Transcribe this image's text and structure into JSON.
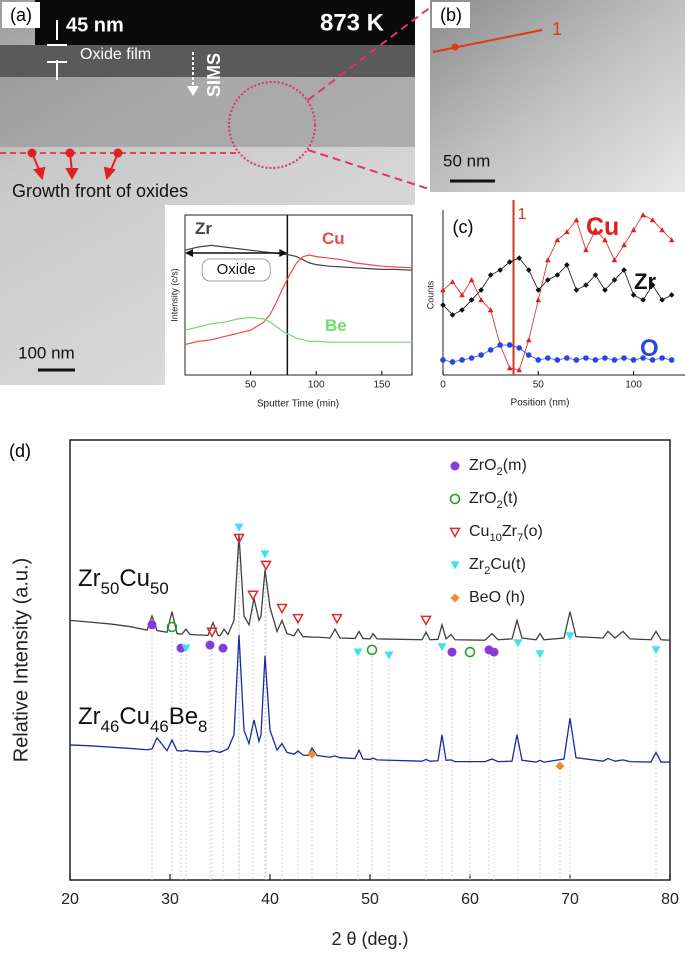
{
  "figure": {
    "panel_labels": [
      "(a)",
      "(b)",
      "(c)",
      "(d)"
    ],
    "micrograph_a": {
      "film_thickness": "45 nm",
      "film_label": "Oxide film",
      "method": "SIMS",
      "temperature": "873 K",
      "front_label": "Growth front of oxides",
      "scale_bar": "100 nm"
    },
    "micrograph_b": {
      "scale_bar": "50 nm",
      "line_label": "1"
    }
  },
  "chart_data": [
    {
      "type": "line",
      "xlabel": "Sputter Time (min)",
      "ylabel": "Intensity (c/s)",
      "x": [
        0,
        10,
        20,
        30,
        40,
        50,
        60,
        65,
        70,
        75,
        80,
        85,
        90,
        95,
        100,
        110,
        120,
        130,
        140,
        150,
        160,
        173
      ],
      "xlim": [
        0,
        173
      ],
      "ylim": [
        0,
        100
      ],
      "xticks": [
        50,
        100,
        150
      ],
      "vline": {
        "x": 78
      },
      "annotation": {
        "text": "Oxide",
        "span": [
          0,
          78
        ]
      },
      "series": [
        {
          "name": "Zr",
          "color": "#444444",
          "values": [
            78,
            80,
            81,
            80,
            79,
            78,
            77,
            76.5,
            76,
            75.5,
            75,
            74,
            72,
            70,
            69,
            68,
            67.5,
            67,
            66.5,
            66,
            66,
            65.5
          ]
        },
        {
          "name": "Cu",
          "color": "#f04848",
          "values": [
            19,
            21,
            22,
            24,
            26,
            28,
            33,
            38,
            46,
            55,
            63,
            70,
            74,
            75,
            74,
            73,
            72,
            70,
            69,
            68,
            67.5,
            67
          ]
        },
        {
          "name": "Be",
          "color": "#6fdc6f",
          "values": [
            28,
            30,
            32,
            33,
            35,
            36,
            35,
            33,
            30,
            27,
            25,
            23,
            22,
            21,
            21,
            20.5,
            20.5,
            20.5,
            20.5,
            20.5,
            20.5,
            20.5
          ]
        }
      ]
    },
    {
      "type": "line",
      "xlabel": "Position (nm)",
      "ylabel": "Counts",
      "x": [
        0,
        5,
        10,
        15,
        20,
        25,
        30,
        35,
        40,
        45,
        50,
        55,
        60,
        65,
        70,
        75,
        80,
        85,
        90,
        95,
        100,
        105,
        110,
        115,
        120
      ],
      "xlim": [
        0,
        127
      ],
      "ylim": [
        0,
        100
      ],
      "xticks": [
        0,
        50,
        100
      ],
      "vline": {
        "x": 37,
        "label": "1"
      },
      "series": [
        {
          "name": "Cu",
          "color": "#e02020",
          "style": "line+markers",
          "marker": "triangle",
          "values": [
            51.5,
            56.4,
            48.5,
            57.6,
            45.5,
            39.4,
            18.2,
            4.2,
            3.0,
            21.2,
            45.5,
            69.7,
            81.8,
            86.7,
            93.9,
            75.8,
            87.9,
            81.8,
            69.7,
            78.8,
            87.9,
            97.0,
            93.9,
            87.9,
            81.8
          ]
        },
        {
          "name": "Zr",
          "color": "#111111",
          "style": "line+markers",
          "marker": "diamond",
          "values": [
            42.4,
            36.4,
            39.4,
            45.5,
            51.5,
            60.6,
            63.6,
            68.5,
            70.9,
            63.6,
            51.5,
            57.6,
            60.6,
            66.7,
            51.5,
            54.5,
            60.6,
            51.5,
            57.6,
            63.6,
            48.5,
            45.5,
            54.5,
            45.5,
            48.5
          ]
        },
        {
          "name": "O",
          "color": "#2a45e6",
          "style": "line+markers",
          "marker": "circle",
          "values": [
            9.1,
            7.9,
            9.1,
            10.3,
            12.1,
            15.2,
            18.2,
            18.2,
            16.4,
            12.1,
            9.1,
            10.3,
            9.1,
            10.3,
            9.1,
            10.3,
            9.1,
            10.3,
            9.1,
            10.3,
            9.1,
            10.3,
            9.1,
            10.3,
            9.1
          ]
        }
      ]
    },
    {
      "type": "line",
      "xlabel": "2 θ (deg.)",
      "ylabel": "Relative Intensity (a.u.)",
      "x": [
        20,
        22,
        24,
        26,
        27.7,
        28.2,
        28.7,
        29.7,
        30.2,
        30.7,
        31.2,
        31.6,
        32.0,
        33.8,
        34.3,
        34.8,
        35.0,
        35.4,
        35.8,
        36.4,
        36.9,
        37.4,
        37.9,
        38.4,
        38.9,
        39.1,
        39.5,
        40.0,
        40.7,
        41.2,
        41.7,
        42.4,
        42.8,
        43.3,
        43.8,
        44.2,
        44.7,
        46.0,
        46.5,
        47.0,
        48.5,
        48.9,
        49.3,
        50.0,
        50.3,
        50.7,
        55.2,
        55.6,
        56.0,
        56.8,
        57.2,
        57.6,
        58.1,
        58.5,
        61.5,
        62.2,
        62.8,
        64.2,
        64.7,
        65.2,
        66.6,
        67.0,
        67.4,
        69.4,
        70.0,
        70.6,
        73.3,
        73.8,
        74.5,
        75.3,
        76.0,
        78.1,
        78.6,
        79.1,
        80
      ],
      "xlim": [
        20,
        80
      ],
      "ylim": [
        0,
        100
      ],
      "xticks": [
        20,
        30,
        40,
        50,
        60,
        70,
        80
      ],
      "series": [
        {
          "name": "Zr50Cu50",
          "color": "#404040",
          "style": "line",
          "values": [
            59,
            58.6,
            58.2,
            57.6,
            56.8,
            60.0,
            56.7,
            56.3,
            61.0,
            56.0,
            55.9,
            57.0,
            55.8,
            55.6,
            58.5,
            55.6,
            55.5,
            57.0,
            55.8,
            59.0,
            78.4,
            60.0,
            58.0,
            64.0,
            59.0,
            60.0,
            70.5,
            62.0,
            56.5,
            59.0,
            56.0,
            55.5,
            57.0,
            55.3,
            55.3,
            55.2,
            55.2,
            55.0,
            57.0,
            55.0,
            54.9,
            56.5,
            54.9,
            54.8,
            56.0,
            54.8,
            54.6,
            56.3,
            54.6,
            54.7,
            58.0,
            54.8,
            55.8,
            54.6,
            54.5,
            56.0,
            54.6,
            54.8,
            59.0,
            55.0,
            54.6,
            56.0,
            54.6,
            55.0,
            61.0,
            55.3,
            55.0,
            56.5,
            55.0,
            56.5,
            54.8,
            54.6,
            56.5,
            54.6,
            54.5
          ]
        },
        {
          "name": "Zr46Cu46Be8",
          "color": "#1a2aa0",
          "style": "line",
          "values": [
            30.7,
            30.5,
            30.2,
            29.9,
            29.6,
            29.8,
            32.3,
            29.4,
            31.8,
            29.4,
            29.3,
            29.5,
            29.3,
            29.1,
            29.4,
            29.1,
            29.0,
            29.4,
            29.8,
            33.0,
            55.7,
            34.0,
            31.0,
            36.4,
            31.5,
            33.0,
            51.0,
            34.0,
            29.5,
            31.0,
            29.0,
            28.6,
            29.3,
            28.4,
            28.3,
            30.0,
            28.3,
            27.9,
            28.2,
            27.8,
            27.6,
            29.5,
            27.5,
            27.4,
            27.7,
            27.3,
            27.0,
            27.4,
            27.0,
            27.1,
            33.0,
            27.2,
            27.3,
            26.9,
            26.9,
            27.5,
            26.9,
            27.0,
            33.0,
            27.2,
            26.8,
            27.2,
            26.8,
            27.5,
            36.8,
            27.8,
            27.0,
            27.6,
            27.0,
            27.3,
            26.9,
            26.8,
            29.0,
            26.8,
            26.8
          ]
        },
        {
          "name": "ZrO2(m)",
          "color": "#8a3ad8",
          "style": "markers",
          "marker": "circle",
          "x": [
            28.2,
            31.1,
            34.0,
            35.3,
            58.2,
            61.9,
            62.4
          ],
          "values": [
            58.0,
            52.7,
            53.4,
            52.7,
            51.8,
            52.3,
            51.8
          ]
        },
        {
          "name": "ZrO2(t)",
          "color": "#2a9a2a",
          "style": "markers",
          "marker": "circle-open",
          "x": [
            30.2,
            50.2,
            60.0
          ],
          "values": [
            57.5,
            52.3,
            51.8
          ]
        },
        {
          "name": "Cu10Zr7(o)",
          "color": "#e02828",
          "style": "markers",
          "marker": "tri-open",
          "x": [
            34.2,
            36.9,
            38.3,
            39.6,
            41.2,
            42.8,
            46.7,
            55.6
          ],
          "values": [
            56.4,
            77.7,
            64.8,
            71.6,
            61.8,
            59.5,
            59.5,
            59.1
          ]
        },
        {
          "name": "Zr2Cu(t)",
          "color": "#40e0f0",
          "style": "markers",
          "marker": "tri",
          "x": [
            31.6,
            36.9,
            39.5,
            48.8,
            51.9,
            57.2,
            64.8,
            67.0,
            70.0,
            78.6
          ],
          "values": [
            52.7,
            80.2,
            74.1,
            51.8,
            51.1,
            53.0,
            53.9,
            51.4,
            55.5,
            52.3
          ]
        },
        {
          "name": "BeO (h)",
          "color": "#f08a30",
          "style": "markers",
          "marker": "diamond",
          "x": [
            44.2,
            69.0
          ],
          "values": [
            28.6,
            25.9
          ]
        }
      ]
    }
  ]
}
